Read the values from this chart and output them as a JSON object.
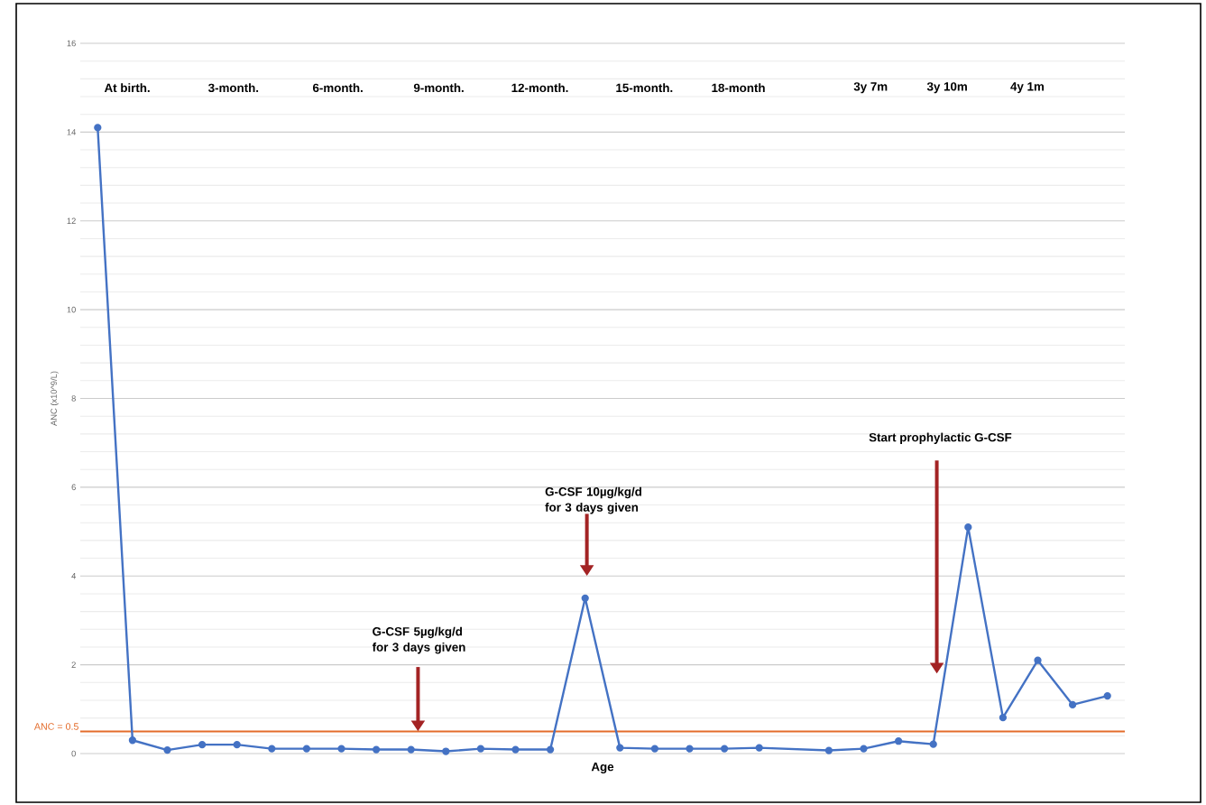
{
  "chart_data": {
    "type": "line",
    "xlabel": "Age",
    "ylabel": "ANC (x10^9/L)",
    "categories": [
      null,
      null,
      null,
      null,
      null,
      null,
      null,
      null,
      null,
      null,
      null,
      null,
      null,
      null,
      null,
      null,
      null,
      null,
      null,
      null,
      null,
      null,
      null,
      null,
      null,
      null,
      null,
      null,
      null,
      null
    ],
    "series": [
      {
        "color": "#4472c4",
        "values": [
          14.1,
          0.3,
          0.08,
          0.2,
          0.2,
          0.11,
          0.11,
          0.11,
          0.09,
          0.09,
          0.05,
          0.11,
          0.09,
          0.09,
          3.5,
          0.13,
          0.11,
          0.11,
          0.11,
          0.13,
          null,
          0.07,
          0.11,
          0.28,
          0.21,
          5.1,
          0.81,
          2.1,
          1.1,
          1.3
        ]
      }
    ],
    "ylim": [
      0,
      16
    ],
    "yticks": [
      0,
      2,
      4,
      6,
      8,
      10,
      12,
      14,
      16
    ],
    "grid": "y",
    "marker": "circle",
    "line_style": "solid",
    "ref_lines": [
      {
        "axis": "y",
        "value": 0.5,
        "label": "ANC = 0.5",
        "color": "#e36c2b"
      }
    ],
    "annotations": [
      "At birth.",
      "3-month.",
      "6-month.",
      "9-month.",
      "12-month.",
      "15-month.",
      "18-month",
      "3y 7m",
      "3y 10m",
      "4y 1m",
      "G-CSF 5µg/kg/d for 3 days given",
      "G-CSF 10µg/kg/d for 3 days given",
      "Start prophylactic G-CSF"
    ]
  }
}
